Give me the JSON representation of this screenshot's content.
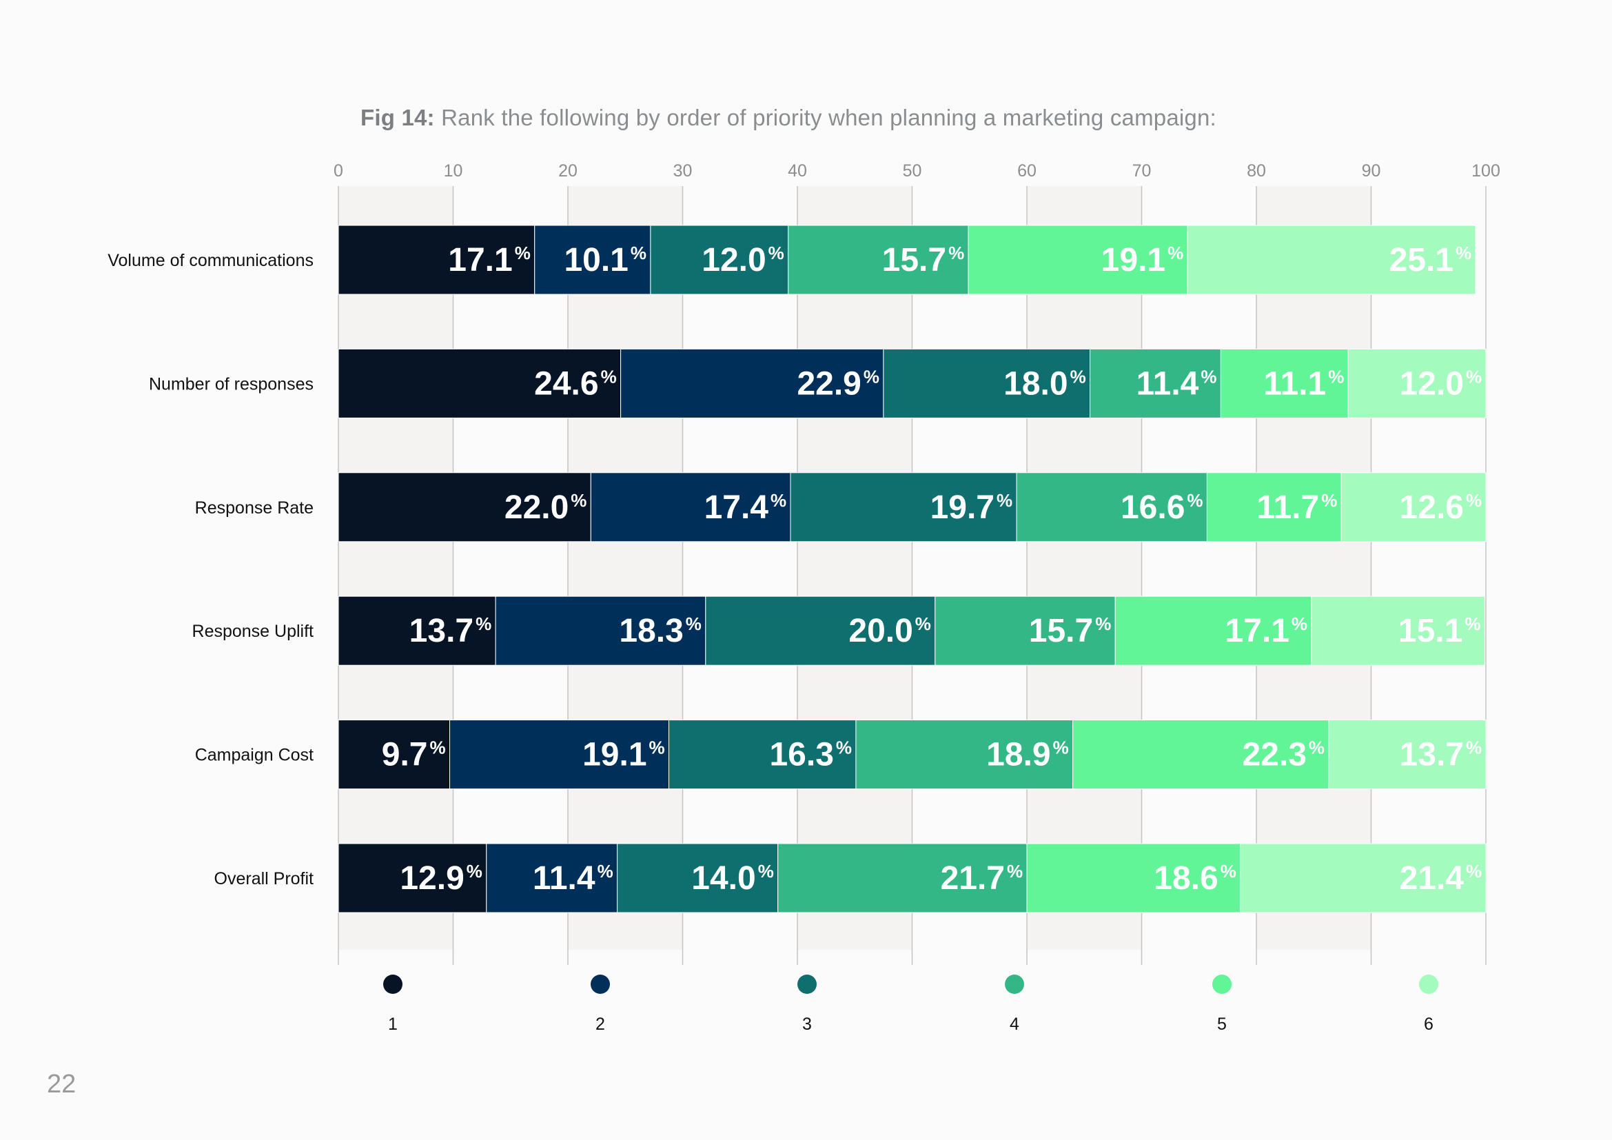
{
  "page": {
    "number": "22"
  },
  "figure": {
    "title_lead": "Fig 14:",
    "title_text": "Rank the following by order of priority when planning a marketing campaign:"
  },
  "chart_data": {
    "type": "bar",
    "orientation": "horizontal",
    "stacked": true,
    "xlim": [
      0,
      100
    ],
    "x_ticks": [
      0,
      10,
      20,
      30,
      40,
      50,
      60,
      70,
      80,
      90,
      100
    ],
    "value_suffix": "%",
    "categories": [
      "Volume of communications",
      "Number of responses",
      "Response Rate",
      "Response Uplift",
      "Campaign Cost",
      "Overall Profit"
    ],
    "series": [
      {
        "name": "1",
        "color": "#061426",
        "values": [
          17.1,
          24.6,
          22.0,
          13.7,
          9.7,
          12.9
        ]
      },
      {
        "name": "2",
        "color": "#00305a",
        "values": [
          10.1,
          22.9,
          17.4,
          18.3,
          19.1,
          11.4
        ]
      },
      {
        "name": "3",
        "color": "#0f6e6e",
        "values": [
          12.0,
          18.0,
          19.7,
          20.0,
          16.3,
          14.0
        ]
      },
      {
        "name": "4",
        "color": "#33b786",
        "values": [
          15.7,
          11.4,
          16.6,
          15.7,
          18.9,
          21.7
        ]
      },
      {
        "name": "5",
        "color": "#61f598",
        "values": [
          19.1,
          11.1,
          11.7,
          17.1,
          22.3,
          18.6
        ]
      },
      {
        "name": "6",
        "color": "#a3fcbd",
        "values": [
          25.1,
          12.0,
          12.6,
          15.1,
          13.7,
          21.4
        ]
      }
    ],
    "legend_position": "bottom",
    "grid": true
  }
}
